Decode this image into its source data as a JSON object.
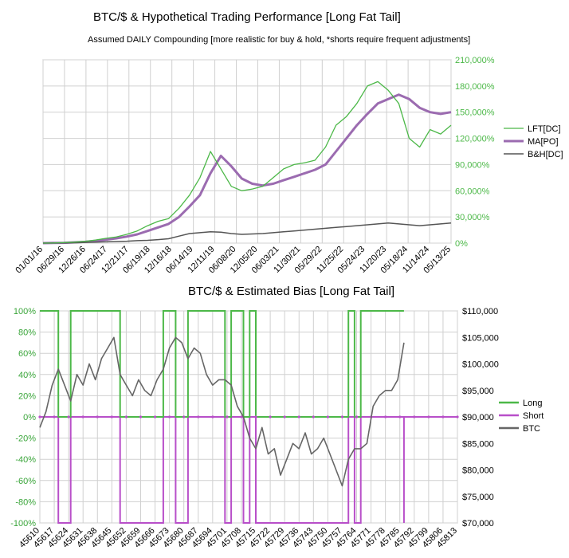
{
  "top_chart": {
    "title": "BTC/$ & Hypothetical Trading Performance [Long Fat Tail]",
    "subtitle": "Assumed DAILY Compounding [more realistic for buy & hold, *shorts require frequent adjustments]"
  },
  "bottom_chart": {
    "title": "BTC/$ & Estimated Bias [Long Fat Tail]"
  },
  "colors": {
    "long": "#4cb848",
    "short": "#b84fc9",
    "btc": "#666666",
    "ma": "#9b6bb0",
    "grid": "#d0d0d0"
  },
  "chart_data": [
    {
      "type": "line",
      "title": "BTC/$ & Hypothetical Trading Performance [Long Fat Tail]",
      "subtitle": "Assumed DAILY Compounding [more realistic for buy & hold, *shorts require frequent adjustments]",
      "xlabel": "",
      "ylabel": "",
      "ylim": [
        0,
        210000
      ],
      "y_ticks": [
        "0%",
        "30,000%",
        "60,000%",
        "90,000%",
        "120,000%",
        "150,000%",
        "180,000%",
        "210,000%"
      ],
      "x_ticks": [
        "01/01/16",
        "06/29/16",
        "12/26/16",
        "06/24/17",
        "12/21/17",
        "06/19/18",
        "12/16/18",
        "06/14/19",
        "12/11/19",
        "06/08/20",
        "12/05/20",
        "06/03/21",
        "11/30/21",
        "05/29/22",
        "11/25/22",
        "05/24/23",
        "11/20/23",
        "05/18/24",
        "11/14/24",
        "05/13/25"
      ],
      "legend_position": "right",
      "x": [
        0,
        0.5,
        1,
        1.5,
        2,
        2.5,
        3,
        3.5,
        4,
        4.5,
        5,
        5.5,
        6,
        6.5,
        7,
        7.5,
        8,
        8.5,
        9,
        9.5,
        10,
        10.5,
        11,
        11.5,
        12,
        12.5,
        13,
        13.5,
        14,
        14.5,
        15,
        15.5,
        16,
        16.5,
        17,
        17.5,
        18,
        18.5,
        19,
        19.5
      ],
      "series": [
        {
          "name": "LFT[DC]",
          "values": [
            0,
            200,
            600,
            1200,
            2000,
            3500,
            5500,
            7000,
            10000,
            14000,
            20000,
            25000,
            28000,
            40000,
            55000,
            75000,
            105000,
            85000,
            65000,
            60000,
            62000,
            65000,
            75000,
            85000,
            90000,
            92000,
            95000,
            110000,
            135000,
            145000,
            160000,
            180000,
            185000,
            175000,
            160000,
            120000,
            110000,
            130000,
            125000,
            135000
          ]
        },
        {
          "name": "MA[PO]",
          "values": [
            0,
            150,
            400,
            900,
            1500,
            2500,
            4000,
            5500,
            7500,
            10000,
            14000,
            18000,
            22000,
            30000,
            42000,
            55000,
            80000,
            100000,
            88000,
            74000,
            68000,
            66000,
            68000,
            72000,
            76000,
            80000,
            84000,
            90000,
            105000,
            120000,
            135000,
            148000,
            160000,
            165000,
            170000,
            165000,
            155000,
            150000,
            148000,
            150000
          ]
        },
        {
          "name": "B&H[DC]",
          "values": [
            0,
            50,
            150,
            400,
            800,
            1200,
            1500,
            1800,
            2200,
            2800,
            3200,
            4000,
            5000,
            8000,
            11000,
            12000,
            13000,
            12500,
            11000,
            10000,
            10500,
            11000,
            12000,
            13000,
            14000,
            15000,
            16000,
            17000,
            18000,
            19000,
            20000,
            21000,
            22000,
            23000,
            22000,
            21000,
            20000,
            21000,
            22000,
            23000
          ]
        }
      ]
    },
    {
      "type": "line",
      "title": "BTC/$ & Estimated Bias [Long Fat Tail]",
      "xlabel": "",
      "ylabel": "",
      "ylim_left": [
        -100,
        100
      ],
      "ylim_right": [
        70000,
        110000
      ],
      "y_ticks_left": [
        "100%",
        "80%",
        "60%",
        "40%",
        "20%",
        "0%",
        "-20%",
        "-40%",
        "-60%",
        "-80%",
        "-100%"
      ],
      "y_ticks_right": [
        "$110,000",
        "$105,000",
        "$100,000",
        "$95,000",
        "$90,000",
        "$85,000",
        "$80,000",
        "$75,000",
        "$70,000"
      ],
      "x_ticks": [
        "45610",
        "45617",
        "45624",
        "45631",
        "45638",
        "45645",
        "45652",
        "45659",
        "45666",
        "45673",
        "45680",
        "45687",
        "45694",
        "45701",
        "45708",
        "45715",
        "45722",
        "45729",
        "45736",
        "45743",
        "45750",
        "45757",
        "45764",
        "45771",
        "45778",
        "45785",
        "45792",
        "45799",
        "45806",
        "45813"
      ],
      "legend_position": "right",
      "x": [
        45610,
        45613,
        45616,
        45619,
        45622,
        45625,
        45628,
        45631,
        45634,
        45637,
        45640,
        45643,
        45646,
        45649,
        45652,
        45655,
        45658,
        45661,
        45664,
        45667,
        45670,
        45673,
        45676,
        45679,
        45682,
        45685,
        45688,
        45691,
        45694,
        45697,
        45700,
        45703,
        45706,
        45709,
        45712,
        45715,
        45718,
        45721,
        45724,
        45727,
        45730,
        45733,
        45736,
        45739,
        45742,
        45745,
        45748,
        45751,
        45754,
        45757,
        45760,
        45763,
        45766,
        45769,
        45772,
        45775,
        45778,
        45781,
        45784,
        45787
      ],
      "series": [
        {
          "name": "Long",
          "axis": "left",
          "values": [
            100,
            100,
            100,
            0,
            0,
            100,
            100,
            100,
            100,
            100,
            100,
            100,
            100,
            0,
            0,
            0,
            0,
            0,
            0,
            0,
            100,
            100,
            0,
            0,
            100,
            100,
            100,
            100,
            100,
            100,
            0,
            100,
            100,
            0,
            100,
            0,
            0,
            0,
            0,
            0,
            0,
            0,
            0,
            0,
            0,
            0,
            0,
            0,
            0,
            0,
            100,
            0,
            100,
            100,
            100,
            100,
            100,
            100,
            100,
            100
          ]
        },
        {
          "name": "Short",
          "axis": "left",
          "values": [
            0,
            0,
            0,
            -100,
            -100,
            0,
            0,
            0,
            0,
            0,
            0,
            0,
            0,
            -100,
            -100,
            -100,
            -100,
            -100,
            -100,
            -100,
            0,
            0,
            -100,
            -100,
            0,
            0,
            0,
            0,
            0,
            0,
            -100,
            0,
            0,
            -100,
            0,
            -100,
            -100,
            -100,
            -100,
            -100,
            -100,
            -100,
            -100,
            -100,
            -100,
            -100,
            -100,
            -100,
            -100,
            -100,
            0,
            -100,
            0,
            0,
            0,
            0,
            0,
            0,
            0,
            -100
          ]
        },
        {
          "name": "BTC",
          "axis": "right",
          "values": [
            88000,
            91000,
            96000,
            99000,
            96000,
            93000,
            98000,
            96000,
            100000,
            97000,
            101000,
            103000,
            105000,
            98000,
            96000,
            94000,
            97000,
            95000,
            94000,
            97000,
            99000,
            103000,
            105000,
            104000,
            101000,
            103000,
            102000,
            98000,
            96000,
            97000,
            97000,
            96000,
            92000,
            90000,
            86000,
            84000,
            88000,
            83000,
            84000,
            79000,
            82000,
            85000,
            84000,
            87000,
            83000,
            84000,
            86000,
            83000,
            80000,
            77000,
            82000,
            84000,
            84000,
            85000,
            92000,
            94000,
            95000,
            95000,
            97000,
            104000
          ]
        }
      ]
    }
  ]
}
